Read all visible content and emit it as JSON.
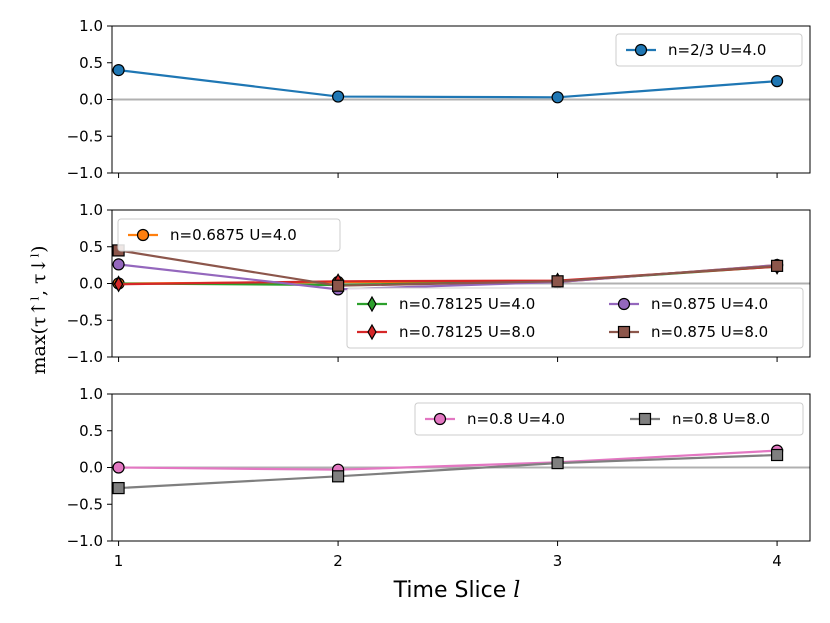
{
  "colors": {
    "blue": "#1f77b4",
    "orange": "#ff7f0e",
    "green": "#2ca02c",
    "red": "#d62728",
    "purple": "#9467bd",
    "brown": "#8c564b",
    "pink": "#e377c2",
    "gray": "#7f7f7f",
    "zero_line": "#b0b0b0"
  },
  "chart_data": {
    "type": "line",
    "xlabel_text": "Time Slice",
    "xlabel_symbol": "l",
    "ylabel": "max(τ↑ˡ, τ↓ˡ)",
    "x": [
      1,
      2,
      3,
      4
    ],
    "x_ticks": [
      "1",
      "2",
      "3",
      "4"
    ],
    "xlim": [
      0.97,
      4.15
    ],
    "y_ticks": [
      "1.0",
      "0.5",
      "0.0",
      "−0.5",
      "−1.0"
    ],
    "y_tick_values": [
      1.0,
      0.5,
      0.0,
      -0.5,
      -1.0
    ],
    "ylim": [
      -1.0,
      1.0
    ],
    "panels": [
      {
        "series": [
          {
            "name": "n=2/3 U=4.0",
            "color": "#1f77b4",
            "marker": "circle",
            "values": [
              0.4,
              0.04,
              0.03,
              0.25
            ]
          }
        ]
      },
      {
        "series": [
          {
            "name": "n=0.6875 U=4.0",
            "color": "#ff7f0e",
            "marker": "circle",
            "values": [
              0.0,
              0.02,
              0.02,
              0.25
            ]
          },
          {
            "name": "n=0.78125 U=4.0",
            "color": "#2ca02c",
            "marker": "thin_diamond",
            "values": [
              0.0,
              -0.02,
              0.03,
              0.23
            ]
          },
          {
            "name": "n=0.78125 U=8.0",
            "color": "#d62728",
            "marker": "thin_diamond",
            "values": [
              -0.01,
              0.03,
              0.04,
              0.23
            ]
          },
          {
            "name": "n=0.875 U=4.0",
            "color": "#9467bd",
            "marker": "circle",
            "values": [
              0.26,
              -0.08,
              0.02,
              0.25
            ]
          },
          {
            "name": "n=0.875 U=8.0",
            "color": "#8c564b",
            "marker": "square",
            "values": [
              0.45,
              -0.03,
              0.03,
              0.24
            ]
          }
        ]
      },
      {
        "series": [
          {
            "name": "n=0.8 U=4.0",
            "color": "#e377c2",
            "marker": "circle",
            "values": [
              0.0,
              -0.03,
              0.07,
              0.23
            ]
          },
          {
            "name": "n=0.8 U=8.0",
            "color": "#7f7f7f",
            "marker": "square",
            "values": [
              -0.28,
              -0.12,
              0.06,
              0.17
            ]
          }
        ]
      }
    ]
  }
}
